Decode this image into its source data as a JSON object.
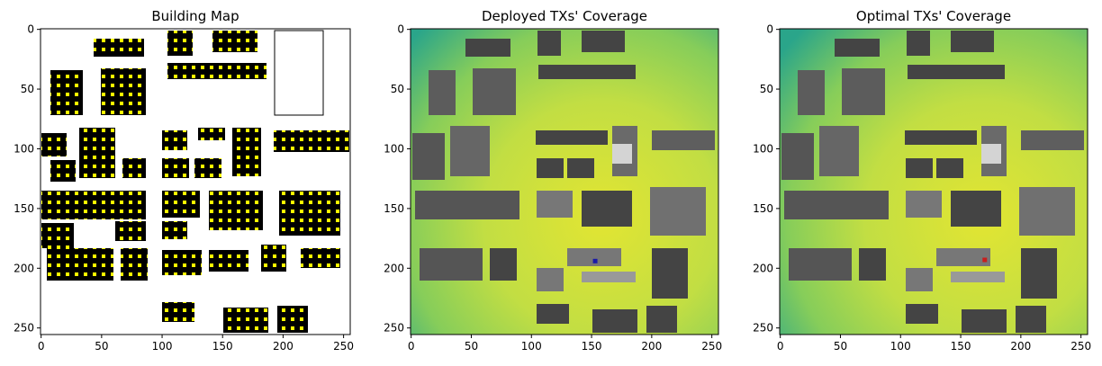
{
  "figure": {
    "panels": [
      {
        "title": "Building Map"
      },
      {
        "title": "Deployed TXs' Coverage"
      },
      {
        "title": "Optimal TXs' Coverage"
      }
    ]
  },
  "chart_data": [
    {
      "type": "heatmap",
      "title": "Building Map",
      "xlim": [
        0,
        255
      ],
      "ylim": [
        255,
        0
      ],
      "xticks": [
        0,
        50,
        100,
        150,
        200,
        250
      ],
      "yticks": [
        0,
        50,
        100,
        150,
        200,
        250
      ],
      "colors": {
        "building": "#000000",
        "tx_candidate": "#ffff00",
        "free": "#ffffff"
      }
    },
    {
      "type": "heatmap",
      "title": "Deployed TXs' Coverage",
      "xlim": [
        0,
        255
      ],
      "ylim": [
        255,
        0
      ],
      "xticks": [
        0,
        50,
        100,
        150,
        200,
        250
      ],
      "yticks": [
        0,
        50,
        100,
        150,
        200,
        250
      ],
      "tx_points": [
        {
          "x": 153,
          "y": 194
        }
      ],
      "colors": {
        "high": "#d7e43a",
        "mid": "#8fcf55",
        "low": "#2aa58a",
        "building": "#454545",
        "tx": "#1a1aa8"
      }
    },
    {
      "type": "heatmap",
      "title": "Optimal TXs' Coverage",
      "xlim": [
        0,
        255
      ],
      "ylim": [
        255,
        0
      ],
      "xticks": [
        0,
        50,
        100,
        150,
        200,
        250
      ],
      "yticks": [
        0,
        50,
        100,
        150,
        200,
        250
      ],
      "tx_points": [
        {
          "x": 170,
          "y": 193
        }
      ],
      "colors": {
        "high": "#d7e43a",
        "mid": "#8fcf55",
        "low": "#2aa58a",
        "building": "#454545",
        "tx": "#c81e1e"
      }
    }
  ]
}
